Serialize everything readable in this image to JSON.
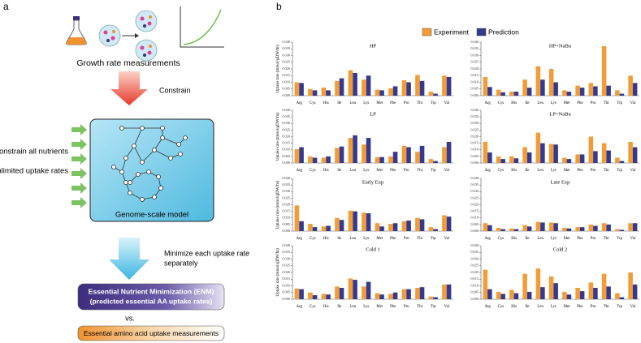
{
  "panel_a": {
    "label": "a",
    "growth": "Growth rate measurements",
    "constrain": "Constrain",
    "unconstrain": "Unconstrain all nutrients",
    "unlimited": "Unlimited uptake rates",
    "model": "Genome-scale model",
    "minimize_1": "Minimize each uptake rate",
    "minimize_2": "separately",
    "enm_1": "Essential Nutrient Minimization (ENM)",
    "enm_2": "(predicted essential AA uptake rates)",
    "vs": "vs.",
    "measurements": "Essential amino acid uptake measurements"
  },
  "panel_b": {
    "label": "b"
  },
  "chart_data": [
    {
      "type": "bar",
      "title": "HP",
      "ylabel": "Uptake rate (mmol/gDW/hr)",
      "categories": [
        "Arg",
        "Cys",
        "His",
        "Ile",
        "Leu",
        "Lys",
        "Met",
        "Phe",
        "Pro",
        "Thr",
        "Trp",
        "Val"
      ],
      "series": [
        {
          "name": "Experiment",
          "color": "#f29c38",
          "values": [
            0.01,
            0.005,
            0.006,
            0.011,
            0.019,
            0.012,
            0.0045,
            0.0055,
            0.0115,
            0.0155,
            0.003,
            0.015
          ]
        },
        {
          "name": "Prediction",
          "color": "#363a8c",
          "values": [
            0.0095,
            0.004,
            0.004,
            0.013,
            0.017,
            0.015,
            0.004,
            0.007,
            0.01,
            0.011,
            0.0015,
            0.014
          ]
        }
      ],
      "ylim": [
        0,
        0.04
      ],
      "yticks": [
        {
          "value": 0,
          "label": "0.000"
        },
        {
          "value": 0.005,
          "label": "0.005"
        },
        {
          "value": 0.01,
          "label": "0.010"
        },
        {
          "value": 0.015,
          "label": "0.015"
        },
        {
          "value": 0.02,
          "label": "0.020"
        },
        {
          "value": 0.025,
          "label": "0.025"
        },
        {
          "value": 0.03,
          "label": "0.030"
        },
        {
          "value": 0.035,
          "label": "0.035"
        },
        {
          "value": 0.04,
          "label": "0.040"
        }
      ]
    },
    {
      "type": "bar",
      "title": "HP+NaBu",
      "categories": [
        "Arg",
        "Cys",
        "His",
        "Ile",
        "Leu",
        "Lys",
        "Met",
        "Phe",
        "Pro",
        "Thr",
        "Trp",
        "Val"
      ],
      "series": [
        {
          "color": "#f29c38",
          "values": [
            0.014,
            0.0045,
            0.003,
            0.012,
            0.022,
            0.02,
            0.004,
            0.0075,
            0.0095,
            0.037,
            0.004,
            0.015
          ]
        },
        {
          "color": "#363a8c",
          "values": [
            0.0065,
            0.0025,
            0.003,
            0.006,
            0.012,
            0.01,
            0.003,
            0.006,
            0.007,
            0.0075,
            0.0015,
            0.0095
          ]
        }
      ],
      "ylim": [
        0,
        0.04
      ],
      "yticks": [
        {
          "value": 0,
          "label": "0.000"
        },
        {
          "value": 0.005,
          "label": "0.005"
        },
        {
          "value": 0.01,
          "label": "0.010"
        },
        {
          "value": 0.015,
          "label": "0.015"
        },
        {
          "value": 0.02,
          "label": "0.020"
        },
        {
          "value": 0.025,
          "label": "0.025"
        },
        {
          "value": 0.03,
          "label": "0.030"
        },
        {
          "value": 0.035,
          "label": "0.035"
        },
        {
          "value": 0.04,
          "label": "0.040"
        }
      ]
    },
    {
      "type": "bar",
      "title": "LP",
      "ylabel": "Uptake rate (mmol/gDW/hr)",
      "categories": [
        "Arg",
        "Cys",
        "His",
        "Ile",
        "Leu",
        "Lys",
        "Met",
        "Phe",
        "Pro",
        "Thr",
        "Trp",
        "Val"
      ],
      "series": [
        {
          "color": "#f29c38",
          "values": [
            0.0105,
            0.005,
            0.004,
            0.0115,
            0.019,
            0.014,
            0.0045,
            0.005,
            0.013,
            0.0085,
            0.003,
            0.012
          ]
        },
        {
          "color": "#363a8c",
          "values": [
            0.012,
            0.004,
            0.005,
            0.0125,
            0.021,
            0.019,
            0.0045,
            0.0085,
            0.012,
            0.013,
            0.0015,
            0.016
          ]
        }
      ],
      "ylim": [
        0,
        0.04
      ],
      "yticks": [
        {
          "value": 0,
          "label": "0.000"
        },
        {
          "value": 0.005,
          "label": "0.005"
        },
        {
          "value": 0.01,
          "label": "0.010"
        },
        {
          "value": 0.015,
          "label": "0.015"
        },
        {
          "value": 0.02,
          "label": "0.020"
        },
        {
          "value": 0.025,
          "label": "0.025"
        },
        {
          "value": 0.03,
          "label": "0.030"
        },
        {
          "value": 0.035,
          "label": "0.035"
        },
        {
          "value": 0.04,
          "label": "0.040"
        }
      ]
    },
    {
      "type": "bar",
      "title": "LP+NaBu",
      "categories": [
        "Arg",
        "Cys",
        "His",
        "Ile",
        "Leu",
        "Lys",
        "Met",
        "Phe",
        "Pro",
        "Thr",
        "Trp",
        "Val"
      ],
      "series": [
        {
          "color": "#f29c38",
          "values": [
            0.016,
            0.005,
            0.005,
            0.012,
            0.023,
            0.0145,
            0.004,
            0.0065,
            0.02,
            0.015,
            0.004,
            0.016
          ]
        },
        {
          "color": "#363a8c",
          "values": [
            0.008,
            0.003,
            0.0035,
            0.008,
            0.015,
            0.014,
            0.003,
            0.0065,
            0.009,
            0.0095,
            0.0015,
            0.012
          ]
        }
      ],
      "ylim": [
        0,
        0.04
      ],
      "yticks": [
        {
          "value": 0,
          "label": "0.000"
        },
        {
          "value": 0.005,
          "label": "0.005"
        },
        {
          "value": 0.01,
          "label": "0.010"
        },
        {
          "value": 0.015,
          "label": "0.015"
        },
        {
          "value": 0.02,
          "label": "0.020"
        },
        {
          "value": 0.025,
          "label": "0.025"
        },
        {
          "value": 0.03,
          "label": "0.030"
        },
        {
          "value": 0.035,
          "label": "0.035"
        },
        {
          "value": 0.04,
          "label": "0.040"
        }
      ]
    },
    {
      "type": "bar",
      "title": "Early Exp",
      "ylabel": "Uptake rate (mmol/gDW/hr)",
      "categories": [
        "Arg",
        "Cys",
        "His",
        "Ile",
        "Leu",
        "Lys",
        "Met",
        "Phe",
        "Pro",
        "Thr",
        "Trp",
        "Val"
      ],
      "series": [
        {
          "color": "#f29c38",
          "values": [
            0.0195,
            0.0055,
            0.0035,
            0.01,
            0.0155,
            0.014,
            0.006,
            0.0055,
            0.0075,
            0.01,
            0.003,
            0.012
          ]
        },
        {
          "color": "#363a8c",
          "values": [
            0.0075,
            0.003,
            0.004,
            0.0085,
            0.015,
            0.0135,
            0.0035,
            0.006,
            0.008,
            0.009,
            0.0015,
            0.011
          ]
        }
      ],
      "ylim": [
        0,
        0.04
      ],
      "yticks": [
        {
          "value": 0,
          "label": "0.000"
        },
        {
          "value": 0.005,
          "label": "0.005"
        },
        {
          "value": 0.01,
          "label": "0.010"
        },
        {
          "value": 0.015,
          "label": "0.015"
        },
        {
          "value": 0.02,
          "label": "0.020"
        },
        {
          "value": 0.025,
          "label": "0.025"
        },
        {
          "value": 0.03,
          "label": "0.030"
        },
        {
          "value": 0.035,
          "label": "0.035"
        },
        {
          "value": 0.04,
          "label": "0.040"
        }
      ]
    },
    {
      "type": "bar",
      "title": "Late Exp",
      "categories": [
        "Arg",
        "Cys",
        "His",
        "Ile",
        "Leu",
        "Lys",
        "Met",
        "Phe",
        "Pro",
        "Thr",
        "Trp",
        "Val"
      ],
      "series": [
        {
          "color": "#f29c38",
          "values": [
            0.006,
            0.0025,
            0.002,
            0.0045,
            0.007,
            0.0065,
            0.0025,
            0.003,
            0.005,
            0.006,
            0.0015,
            0.006
          ]
        },
        {
          "color": "#363a8c",
          "values": [
            0.0045,
            0.0015,
            0.0015,
            0.0035,
            0.0065,
            0.006,
            0.002,
            0.003,
            0.004,
            0.005,
            0.001,
            0.006
          ]
        }
      ],
      "ylim": [
        0,
        0.04
      ],
      "yticks": [
        {
          "value": 0,
          "label": "0.000"
        },
        {
          "value": 0.005,
          "label": "0.005"
        },
        {
          "value": 0.01,
          "label": "0.010"
        },
        {
          "value": 0.015,
          "label": "0.015"
        },
        {
          "value": 0.02,
          "label": "0.020"
        },
        {
          "value": 0.025,
          "label": "0.025"
        },
        {
          "value": 0.03,
          "label": "0.030"
        },
        {
          "value": 0.035,
          "label": "0.035"
        },
        {
          "value": 0.04,
          "label": "0.040"
        }
      ]
    },
    {
      "type": "bar",
      "title": "Cold 1",
      "ylabel": "Uptake rate (mmol/gDW/hr)",
      "categories": [
        "Arg",
        "Cys",
        "His",
        "Ile",
        "Leu",
        "Lys",
        "Met",
        "Phe",
        "Pro",
        "Thr",
        "Trp",
        "Val"
      ],
      "series": [
        {
          "color": "#f29c38",
          "values": [
            0.008,
            0.005,
            0.004,
            0.0095,
            0.0155,
            0.0095,
            0.0045,
            0.004,
            0.0075,
            0.0085,
            0.002,
            0.011
          ]
        },
        {
          "color": "#363a8c",
          "values": [
            0.0075,
            0.003,
            0.0035,
            0.0085,
            0.0145,
            0.013,
            0.0035,
            0.005,
            0.0075,
            0.009,
            0.0015,
            0.011
          ]
        }
      ],
      "ylim": [
        0,
        0.04
      ],
      "yticks": [
        {
          "value": 0,
          "label": "0.000"
        },
        {
          "value": 0.005,
          "label": "0.005"
        },
        {
          "value": 0.01,
          "label": "0.010"
        },
        {
          "value": 0.015,
          "label": "0.015"
        },
        {
          "value": 0.02,
          "label": "0.020"
        },
        {
          "value": 0.025,
          "label": "0.025"
        },
        {
          "value": 0.03,
          "label": "0.030"
        },
        {
          "value": 0.035,
          "label": "0.035"
        },
        {
          "value": 0.04,
          "label": "0.040"
        }
      ]
    },
    {
      "type": "bar",
      "title": "Cold 2",
      "categories": [
        "Arg",
        "Cys",
        "His",
        "Ile",
        "Leu",
        "Lys",
        "Met",
        "Phe",
        "Pro",
        "Thr",
        "Trp",
        "Val"
      ],
      "series": [
        {
          "color": "#f29c38",
          "values": [
            0.022,
            0.0055,
            0.007,
            0.019,
            0.023,
            0.017,
            0.0055,
            0.0085,
            0.0125,
            0.019,
            0.0045,
            0.02
          ]
        },
        {
          "color": "#363a8c",
          "values": [
            0.0075,
            0.004,
            0.0045,
            0.0055,
            0.009,
            0.012,
            0.0035,
            0.006,
            0.0085,
            0.0095,
            0.0015,
            0.011
          ]
        }
      ],
      "ylim": [
        0,
        0.04
      ],
      "yticks": [
        {
          "value": 0,
          "label": "0.000"
        },
        {
          "value": 0.005,
          "label": "0.005"
        },
        {
          "value": 0.01,
          "label": "0.010"
        },
        {
          "value": 0.015,
          "label": "0.015"
        },
        {
          "value": 0.02,
          "label": "0.020"
        },
        {
          "value": 0.025,
          "label": "0.025"
        },
        {
          "value": 0.03,
          "label": "0.030"
        },
        {
          "value": 0.035,
          "label": "0.035"
        },
        {
          "value": 0.04,
          "label": "0.040"
        }
      ]
    }
  ]
}
